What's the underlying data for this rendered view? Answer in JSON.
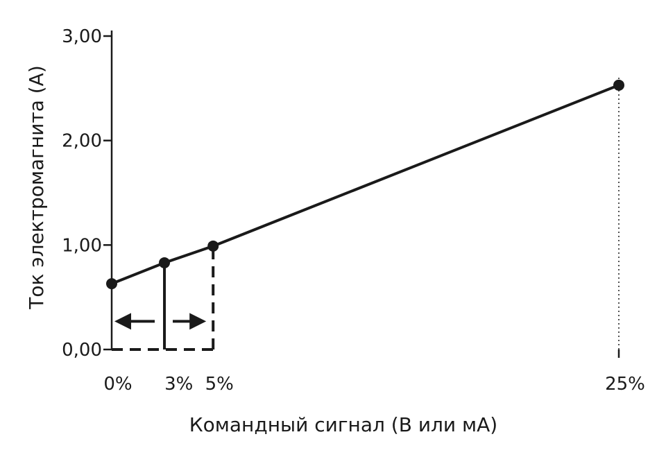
{
  "chart_data": {
    "type": "line",
    "title": "",
    "xlabel": "Командный сигнал (В или мА)",
    "ylabel": "Ток электромагнита (А)",
    "x_ticks": [
      {
        "value": 0,
        "label": "0%"
      },
      {
        "value": 3,
        "label": "3%"
      },
      {
        "value": 5,
        "label": "5%"
      },
      {
        "value": 25,
        "label": "25%"
      }
    ],
    "y_ticks": [
      {
        "value": 0,
        "label": "0,00"
      },
      {
        "value": 1,
        "label": "1,00"
      },
      {
        "value": 2,
        "label": "2,00"
      },
      {
        "value": 3,
        "label": "3,00"
      }
    ],
    "xlim": [
      0,
      25
    ],
    "ylim": [
      0,
      3
    ],
    "grid": false,
    "legend": "none",
    "series": [
      {
        "points": [
          {
            "x": 0,
            "y": 0.63
          },
          {
            "x": 2.6,
            "y": 0.83
          },
          {
            "x": 5,
            "y": 0.99
          },
          {
            "x": 25,
            "y": 2.53
          }
        ]
      }
    ],
    "annotations": {
      "solid_marker_x": 2.6,
      "dashed_marker_x": 5,
      "dotted_marker_x": 25,
      "arrows": [
        "left",
        "right"
      ],
      "arrow_y": 0.27
    },
    "color": "#1a1a1a"
  }
}
